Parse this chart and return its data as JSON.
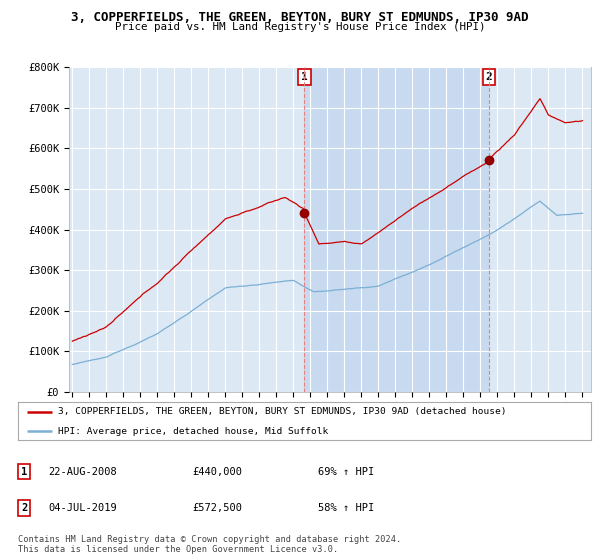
{
  "title": "3, COPPERFIELDS, THE GREEN, BEYTON, BURY ST EDMUNDS, IP30 9AD",
  "subtitle": "Price paid vs. HM Land Registry's House Price Index (HPI)",
  "legend_line1": "3, COPPERFIELDS, THE GREEN, BEYTON, BURY ST EDMUNDS, IP30 9AD (detached house)",
  "legend_line2": "HPI: Average price, detached house, Mid Suffolk",
  "annotation1_label": "1",
  "annotation1_date": "22-AUG-2008",
  "annotation1_price": "£440,000",
  "annotation1_hpi": "69% ↑ HPI",
  "annotation2_label": "2",
  "annotation2_date": "04-JUL-2019",
  "annotation2_price": "£572,500",
  "annotation2_hpi": "58% ↑ HPI",
  "footer": "Contains HM Land Registry data © Crown copyright and database right 2024.\nThis data is licensed under the Open Government Licence v3.0.",
  "sale1_year": 2008.65,
  "sale1_value": 440000,
  "sale2_year": 2019.5,
  "sale2_value": 572500,
  "y_ticks": [
    0,
    100000,
    200000,
    300000,
    400000,
    500000,
    600000,
    700000,
    800000
  ],
  "y_tick_labels": [
    "£0",
    "£100K",
    "£200K",
    "£300K",
    "£400K",
    "£500K",
    "£600K",
    "£700K",
    "£800K"
  ],
  "x_min": 1994.8,
  "x_max": 2025.5,
  "y_min": 0,
  "y_max": 800000,
  "chart_bg": "#dce9f5",
  "highlight_bg": "#c8daf0",
  "red_color": "#cc0000",
  "blue_color": "#7bafd4",
  "grid_color": "#ffffff",
  "dashed_color": "#e88080"
}
